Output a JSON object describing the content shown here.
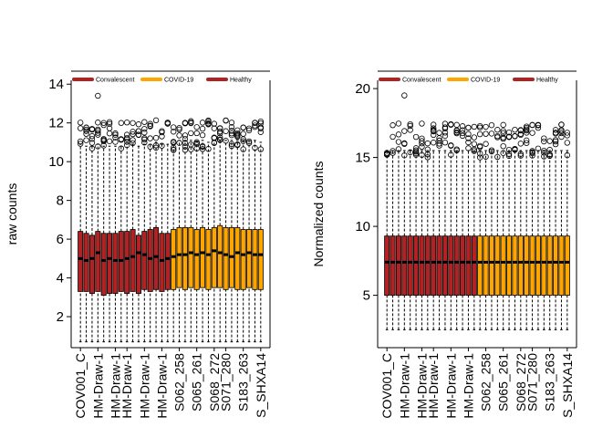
{
  "colors": {
    "Convalescent": "#B22222",
    "COVID-19": "#FFA500",
    "Healthy": "#B22222",
    "axis": "#000000",
    "background": "#FFFFFF"
  },
  "chart_data": [
    {
      "type": "boxplot",
      "title": "",
      "xlabel": "",
      "ylabel": "raw counts",
      "ylim": [
        0.4,
        14.2
      ],
      "yticks": [
        2,
        4,
        6,
        8,
        10,
        12,
        14
      ],
      "grid": false,
      "legend": {
        "placement": "top",
        "entries": [
          {
            "label": "Convalescent",
            "color": "#B22222"
          },
          {
            "label": "COVID-19",
            "color": "#FFA500"
          },
          {
            "label": "Healthy",
            "color": "#B22222"
          }
        ]
      },
      "categories": [
        "COV001_C",
        "HM-Draw-1",
        "HM-Draw-1",
        "HM-Draw-1",
        "HM-Draw-1",
        "HM-Draw-1",
        "S062_258",
        "S065_261",
        "S068_272",
        "S071_280",
        "S183_263",
        "S_SHXA14"
      ],
      "boxes": [
        {
          "group": "Convalescent",
          "min": 0.7,
          "q1": 3.3,
          "median": 5.0,
          "q3": 6.4,
          "whisker_hi": 10.9
        },
        {
          "group": "Convalescent",
          "min": 0.7,
          "q1": 3.3,
          "median": 4.9,
          "q3": 6.3,
          "whisker_hi": 10.8
        },
        {
          "group": "Convalescent",
          "min": 0.7,
          "q1": 3.2,
          "median": 5.0,
          "q3": 6.2,
          "whisker_hi": 10.8
        },
        {
          "group": "Convalescent",
          "min": 0.7,
          "q1": 3.3,
          "median": 5.3,
          "q3": 6.4,
          "whisker_hi": 10.9
        },
        {
          "group": "Convalescent",
          "min": 0.7,
          "q1": 3.1,
          "median": 4.9,
          "q3": 6.3,
          "whisker_hi": 10.8
        },
        {
          "group": "Convalescent",
          "min": 0.7,
          "q1": 3.2,
          "median": 5.0,
          "q3": 6.3,
          "whisker_hi": 10.8
        },
        {
          "group": "Convalescent",
          "min": 0.7,
          "q1": 3.2,
          "median": 4.9,
          "q3": 6.3,
          "whisker_hi": 10.8
        },
        {
          "group": "Convalescent",
          "min": 0.7,
          "q1": 3.3,
          "median": 4.9,
          "q3": 6.4,
          "whisker_hi": 10.8
        },
        {
          "group": "Convalescent",
          "min": 0.7,
          "q1": 3.2,
          "median": 5.0,
          "q3": 6.4,
          "whisker_hi": 10.9
        },
        {
          "group": "Convalescent",
          "min": 0.7,
          "q1": 3.3,
          "median": 5.1,
          "q3": 6.5,
          "whisker_hi": 10.9
        },
        {
          "group": "Convalescent",
          "min": 0.7,
          "q1": 3.2,
          "median": 5.3,
          "q3": 6.2,
          "whisker_hi": 10.8
        },
        {
          "group": "Convalescent",
          "min": 0.7,
          "q1": 3.4,
          "median": 5.2,
          "q3": 6.4,
          "whisker_hi": 10.9
        },
        {
          "group": "Convalescent",
          "min": 0.7,
          "q1": 3.3,
          "median": 5.0,
          "q3": 6.5,
          "whisker_hi": 10.9
        },
        {
          "group": "Convalescent",
          "min": 0.7,
          "q1": 3.4,
          "median": 5.1,
          "q3": 6.6,
          "whisker_hi": 11.0
        },
        {
          "group": "Convalescent",
          "min": 0.7,
          "q1": 3.3,
          "median": 4.9,
          "q3": 6.3,
          "whisker_hi": 10.9
        },
        {
          "group": "Healthy",
          "min": 0.7,
          "q1": 3.4,
          "median": 5.0,
          "q3": 6.3,
          "whisker_hi": 10.9
        },
        {
          "group": "COVID-19",
          "min": 0.7,
          "q1": 3.4,
          "median": 5.1,
          "q3": 6.5,
          "whisker_hi": 11.0
        },
        {
          "group": "COVID-19",
          "min": 0.7,
          "q1": 3.5,
          "median": 5.2,
          "q3": 6.6,
          "whisker_hi": 11.1
        },
        {
          "group": "COVID-19",
          "min": 0.7,
          "q1": 3.4,
          "median": 5.2,
          "q3": 6.6,
          "whisker_hi": 11.1
        },
        {
          "group": "COVID-19",
          "min": 0.7,
          "q1": 3.5,
          "median": 5.3,
          "q3": 6.6,
          "whisker_hi": 11.1
        },
        {
          "group": "COVID-19",
          "min": 0.7,
          "q1": 3.4,
          "median": 5.2,
          "q3": 6.5,
          "whisker_hi": 11.0
        },
        {
          "group": "COVID-19",
          "min": 0.7,
          "q1": 3.5,
          "median": 5.3,
          "q3": 6.6,
          "whisker_hi": 11.1
        },
        {
          "group": "COVID-19",
          "min": 0.7,
          "q1": 3.4,
          "median": 5.2,
          "q3": 6.5,
          "whisker_hi": 11.0
        },
        {
          "group": "COVID-19",
          "min": 0.7,
          "q1": 3.5,
          "median": 5.4,
          "q3": 6.6,
          "whisker_hi": 11.1
        },
        {
          "group": "COVID-19",
          "min": 0.7,
          "q1": 3.5,
          "median": 5.3,
          "q3": 6.7,
          "whisker_hi": 11.1
        },
        {
          "group": "COVID-19",
          "min": 0.7,
          "q1": 3.4,
          "median": 5.2,
          "q3": 6.6,
          "whisker_hi": 11.1
        },
        {
          "group": "COVID-19",
          "min": 0.7,
          "q1": 3.5,
          "median": 5.1,
          "q3": 6.6,
          "whisker_hi": 11.1
        },
        {
          "group": "COVID-19",
          "min": 0.7,
          "q1": 3.4,
          "median": 5.3,
          "q3": 6.6,
          "whisker_hi": 11.1
        },
        {
          "group": "COVID-19",
          "min": 0.7,
          "q1": 3.4,
          "median": 5.2,
          "q3": 6.5,
          "whisker_hi": 11.1
        },
        {
          "group": "COVID-19",
          "min": 0.7,
          "q1": 3.5,
          "median": 5.3,
          "q3": 6.5,
          "whisker_hi": 11.1
        },
        {
          "group": "COVID-19",
          "min": 0.7,
          "q1": 3.4,
          "median": 5.2,
          "q3": 6.5,
          "whisker_hi": 11.1
        },
        {
          "group": "COVID-19",
          "min": 0.7,
          "q1": 3.4,
          "median": 5.2,
          "q3": 6.5,
          "whisker_hi": 11.0
        }
      ],
      "outlier_range": [
        10.6,
        13.4
      ],
      "max_outlier": 13.4
    },
    {
      "type": "boxplot",
      "title": "",
      "xlabel": "",
      "ylabel": "Normalized counts",
      "ylim": [
        1.2,
        20.6
      ],
      "yticks": [
        5,
        10,
        15,
        20
      ],
      "grid": false,
      "legend": {
        "placement": "top",
        "entries": [
          {
            "label": "Convalescent",
            "color": "#B22222"
          },
          {
            "label": "COVID-19",
            "color": "#FFA500"
          },
          {
            "label": "Healthy",
            "color": "#B22222"
          }
        ]
      },
      "categories": [
        "COV001_C",
        "HM-Draw-1",
        "HM-Draw-1",
        "HM-Draw-1",
        "HM-Draw-1",
        "HM-Draw-1",
        "S062_258",
        "S065_261",
        "S068_272",
        "S071_280",
        "S183_263",
        "S_SHXA14"
      ],
      "boxes_summary": {
        "count": 32,
        "convalescent_healthy_count": 16,
        "covid_count": 16,
        "min": 2.5,
        "q1": 5.0,
        "median": 7.4,
        "q3": 9.3,
        "whisker_hi": 15.5
      },
      "outlier_range": [
        15.0,
        19.5
      ],
      "max_outlier": 19.5
    }
  ]
}
